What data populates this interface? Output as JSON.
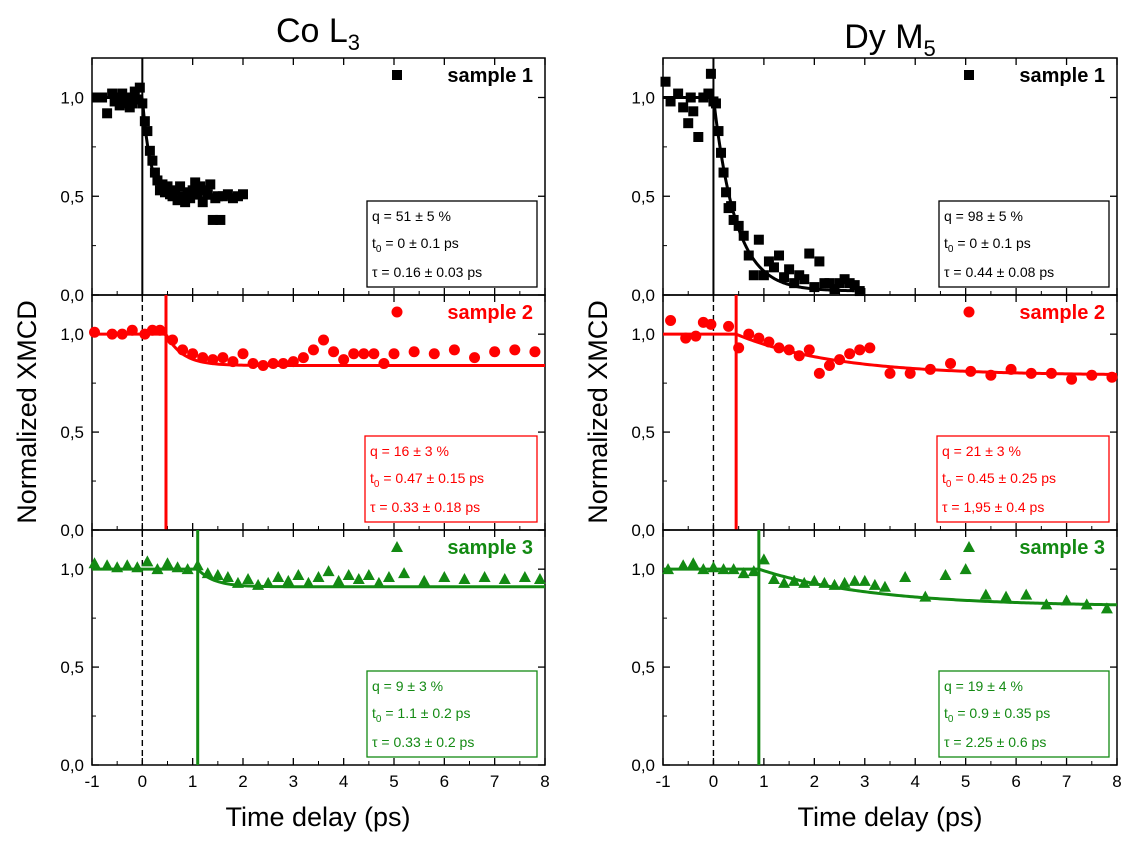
{
  "figure": {
    "titles": [
      "Co L",
      "Dy M"
    ],
    "title_subscripts": [
      "3",
      "5"
    ],
    "ylabel": "Normalized XMCD",
    "xlabel": "Time delay (ps)"
  },
  "colors": {
    "sample1": "#000000",
    "sample2": "#ff0000",
    "sample3": "#138a13"
  },
  "chart_data": [
    {
      "type": "scatter",
      "title": "Co L3",
      "xlabel": "Time delay (ps)",
      "ylabel": "Normalized XMCD",
      "xlim": [
        -1,
        8
      ],
      "x_ticks": [
        "-1",
        "0",
        "1",
        "2",
        "3",
        "4",
        "5",
        "6",
        "7",
        "8"
      ],
      "y_ticks": [
        "0,0",
        "0,5",
        "1,0"
      ],
      "panels": [
        {
          "series": {
            "name": "sample 1",
            "marker": "square",
            "color": "#000000",
            "x": [
              -0.9,
              -0.8,
              -0.7,
              -0.6,
              -0.55,
              -0.5,
              -0.45,
              -0.4,
              -0.35,
              -0.3,
              -0.25,
              -0.2,
              -0.15,
              -0.1,
              -0.05,
              0.0,
              0.05,
              0.1,
              0.15,
              0.2,
              0.25,
              0.3,
              0.35,
              0.4,
              0.45,
              0.5,
              0.55,
              0.6,
              0.65,
              0.7,
              0.75,
              0.8,
              0.85,
              0.9,
              0.95,
              1.0,
              1.05,
              1.1,
              1.15,
              1.2,
              1.25,
              1.3,
              1.35,
              1.4,
              1.45,
              1.5,
              1.55,
              1.6,
              1.7,
              1.8,
              1.9,
              2.0
            ],
            "y": [
              1.0,
              1.0,
              0.92,
              1.02,
              0.98,
              1.0,
              0.96,
              1.02,
              0.97,
              1.0,
              0.95,
              0.97,
              1.03,
              0.99,
              1.05,
              0.97,
              0.88,
              0.83,
              0.73,
              0.68,
              0.62,
              0.58,
              0.53,
              0.56,
              0.52,
              0.55,
              0.51,
              0.5,
              0.53,
              0.48,
              0.55,
              0.5,
              0.47,
              0.52,
              0.49,
              0.53,
              0.57,
              0.52,
              0.55,
              0.47,
              0.53,
              0.51,
              0.56,
              0.38,
              0.49,
              0.5,
              0.38,
              0.5,
              0.51,
              0.49,
              0.5,
              0.51
            ]
          },
          "fit": {
            "q": 0.51,
            "t0": 0.0,
            "tau": 0.16,
            "x_end": 2.0
          },
          "annotation": [
            "q = 51 ± 5 %",
            "t",
            "0",
            " = 0 ± 0.1 ps",
            "τ = 0.16 ± 0.03 ps"
          ]
        },
        {
          "series": {
            "name": "sample 2",
            "marker": "circle",
            "color": "#ff0000",
            "x": [
              -0.95,
              -0.6,
              -0.4,
              -0.2,
              0.05,
              0.2,
              0.35,
              0.6,
              0.8,
              1.0,
              1.2,
              1.4,
              1.6,
              1.8,
              2.0,
              2.2,
              2.4,
              2.6,
              2.8,
              3.0,
              3.2,
              3.4,
              3.6,
              3.8,
              4.0,
              4.2,
              4.4,
              4.6,
              4.8,
              5.0,
              5.4,
              5.8,
              6.2,
              6.6,
              7.0,
              7.4,
              7.8
            ],
            "y": [
              1.01,
              1.0,
              1.0,
              1.02,
              1.0,
              1.02,
              1.02,
              0.97,
              0.92,
              0.9,
              0.88,
              0.87,
              0.88,
              0.86,
              0.9,
              0.85,
              0.84,
              0.85,
              0.85,
              0.86,
              0.88,
              0.92,
              0.97,
              0.91,
              0.87,
              0.9,
              0.9,
              0.9,
              0.85,
              0.9,
              0.91,
              0.9,
              0.92,
              0.88,
              0.91,
              0.92,
              0.91
            ]
          },
          "fit": {
            "q": 0.16,
            "t0": 0.47,
            "tau": 0.33,
            "x_end": 8.0
          },
          "annotation": [
            "q = 16 ± 3 %",
            "t",
            "0",
            " = 0.47 ± 0.15 ps",
            "τ = 0.33 ± 0.18 ps"
          ]
        },
        {
          "series": {
            "name": "sample 3",
            "marker": "triangle",
            "color": "#138a13",
            "x": [
              -0.95,
              -0.7,
              -0.5,
              -0.3,
              -0.1,
              0.1,
              0.3,
              0.5,
              0.7,
              0.9,
              1.1,
              1.3,
              1.5,
              1.7,
              1.9,
              2.1,
              2.3,
              2.5,
              2.7,
              2.9,
              3.1,
              3.3,
              3.5,
              3.7,
              3.9,
              4.1,
              4.3,
              4.5,
              4.7,
              4.9,
              5.2,
              5.6,
              6.0,
              6.4,
              6.8,
              7.2,
              7.6,
              7.9
            ],
            "y": [
              1.03,
              1.02,
              1.01,
              1.02,
              1.01,
              1.04,
              1.0,
              1.03,
              1.01,
              1.0,
              1.02,
              0.98,
              0.97,
              0.96,
              0.93,
              0.95,
              0.92,
              0.93,
              0.96,
              0.94,
              0.97,
              0.93,
              0.96,
              0.99,
              0.94,
              0.97,
              0.95,
              0.97,
              0.93,
              0.96,
              0.98,
              0.94,
              0.96,
              0.95,
              0.96,
              0.95,
              0.96,
              0.95
            ]
          },
          "fit": {
            "q": 0.09,
            "t0": 1.1,
            "tau": 0.33,
            "x_end": 8.0
          },
          "annotation": [
            "q = 9 ± 3 %",
            "t",
            "0",
            " = 1.1 ± 0.2 ps",
            "τ = 0.33 ± 0.2 ps"
          ]
        }
      ]
    },
    {
      "type": "scatter",
      "title": "Dy M5",
      "xlabel": "Time delay (ps)",
      "ylabel": "Normalized XMCD",
      "xlim": [
        -1,
        8
      ],
      "x_ticks": [
        "-1",
        "0",
        "1",
        "2",
        "3",
        "4",
        "5",
        "6",
        "7",
        "8"
      ],
      "y_ticks": [
        "0,0",
        "0,5",
        "1,0"
      ],
      "panels": [
        {
          "series": {
            "name": "sample 1",
            "marker": "square",
            "color": "#000000",
            "x": [
              -0.95,
              -0.85,
              -0.7,
              -0.6,
              -0.5,
              -0.45,
              -0.4,
              -0.3,
              -0.2,
              -0.1,
              -0.05,
              0.0,
              0.05,
              0.1,
              0.15,
              0.2,
              0.25,
              0.3,
              0.35,
              0.4,
              0.5,
              0.6,
              0.7,
              0.8,
              0.9,
              1.0,
              1.1,
              1.2,
              1.3,
              1.4,
              1.5,
              1.6,
              1.7,
              1.8,
              1.9,
              2.0,
              2.1,
              2.2,
              2.3,
              2.4,
              2.5,
              2.6,
              2.7,
              2.8,
              2.9
            ],
            "y": [
              1.08,
              0.98,
              1.02,
              0.95,
              0.87,
              1.0,
              0.93,
              0.8,
              1.0,
              1.02,
              1.12,
              0.98,
              0.97,
              0.83,
              0.72,
              0.62,
              0.52,
              0.44,
              0.45,
              0.38,
              0.35,
              0.3,
              0.2,
              0.1,
              0.28,
              0.1,
              0.17,
              0.14,
              0.2,
              0.09,
              0.13,
              0.06,
              0.1,
              0.08,
              0.21,
              0.04,
              0.17,
              0.06,
              0.06,
              0.03,
              0.06,
              0.08,
              0.06,
              0.05,
              0.02
            ]
          },
          "fit": {
            "q": 0.98,
            "t0": 0.0,
            "tau": 0.44,
            "x_end": 2.8
          },
          "annotation": [
            "q = 98 ± 5 %",
            "t",
            "0",
            " = 0 ± 0.1 ps",
            "τ = 0.44 ± 0.08 ps"
          ]
        },
        {
          "series": {
            "name": "sample 2",
            "marker": "circle",
            "color": "#ff0000",
            "x": [
              -0.85,
              -0.55,
              -0.35,
              -0.2,
              -0.05,
              0.3,
              0.5,
              0.7,
              0.9,
              1.1,
              1.3,
              1.5,
              1.7,
              1.9,
              2.1,
              2.3,
              2.5,
              2.7,
              2.9,
              3.1,
              3.5,
              3.9,
              4.3,
              4.7,
              5.1,
              5.5,
              5.9,
              6.3,
              6.7,
              7.1,
              7.5,
              7.9
            ],
            "y": [
              1.07,
              0.98,
              0.99,
              1.06,
              1.05,
              1.04,
              0.93,
              1.0,
              0.98,
              0.96,
              0.93,
              0.92,
              0.89,
              0.92,
              0.8,
              0.84,
              0.87,
              0.9,
              0.92,
              0.93,
              0.8,
              0.8,
              0.82,
              0.85,
              0.81,
              0.79,
              0.82,
              0.8,
              0.8,
              0.77,
              0.79,
              0.78
            ]
          },
          "fit": {
            "q": 0.21,
            "t0": 0.45,
            "tau": 1.95,
            "x_end": 8.0
          },
          "annotation": [
            "q = 21 ± 3 %",
            "t",
            "0",
            " = 0.45 ± 0.25 ps",
            "τ = 1,95 ± 0.4 ps"
          ]
        },
        {
          "series": {
            "name": "sample 3",
            "marker": "triangle",
            "color": "#138a13",
            "x": [
              -0.9,
              -0.6,
              -0.4,
              -0.2,
              0.0,
              0.2,
              0.4,
              0.6,
              0.8,
              1.0,
              1.2,
              1.4,
              1.6,
              1.8,
              2.0,
              2.2,
              2.4,
              2.6,
              2.8,
              3.0,
              3.2,
              3.4,
              3.8,
              4.2,
              4.6,
              5.0,
              5.4,
              5.8,
              6.2,
              6.6,
              7.0,
              7.4,
              7.8
            ],
            "y": [
              1.0,
              1.02,
              1.03,
              1.0,
              1.01,
              1.0,
              1.0,
              0.98,
              0.99,
              1.05,
              0.95,
              0.93,
              0.94,
              0.93,
              0.94,
              0.93,
              0.92,
              0.93,
              0.94,
              0.94,
              0.92,
              0.91,
              0.96,
              0.86,
              0.97,
              1.0,
              0.87,
              0.86,
              0.87,
              0.82,
              0.84,
              0.82,
              0.8
            ]
          },
          "fit": {
            "q": 0.19,
            "t0": 0.9,
            "tau": 2.25,
            "x_end": 8.0
          },
          "annotation": [
            "q = 19 ± 4 %",
            "t",
            "0",
            " = 0.9 ± 0.35 ps",
            "τ = 2.25 ± 0.6 ps"
          ]
        }
      ]
    }
  ]
}
